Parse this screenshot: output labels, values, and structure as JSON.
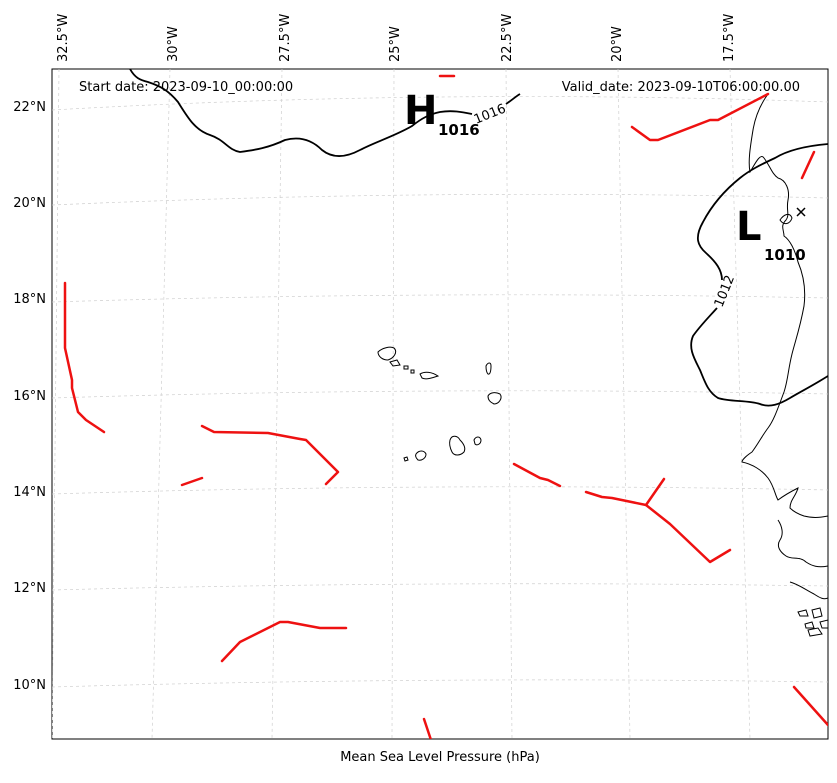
{
  "map": {
    "start_date": "Start date: 2023-09-10_00:00:00",
    "valid_date": "Valid_date: 2023-09-10T06:00:00.00",
    "colorbar_label": "Mean Sea Level Pressure (hPa)",
    "lon_labels": [
      "32.5°W",
      "30°W",
      "27.5°W",
      "25°W",
      "22.5°W",
      "20°W",
      "17.5°W"
    ],
    "lat_labels": [
      "22°N",
      "20°N",
      "18°N",
      "16°N",
      "14°N",
      "12°N",
      "10°N"
    ],
    "isobar_labels": [
      "1016",
      "1012"
    ],
    "pressure_centers": [
      {
        "type": "H",
        "value": "1016"
      },
      {
        "type": "L",
        "value": "1010"
      }
    ],
    "colors": {
      "front": "#ee1111",
      "isobar": "#000000",
      "grid": "#cfcfcf"
    }
  }
}
